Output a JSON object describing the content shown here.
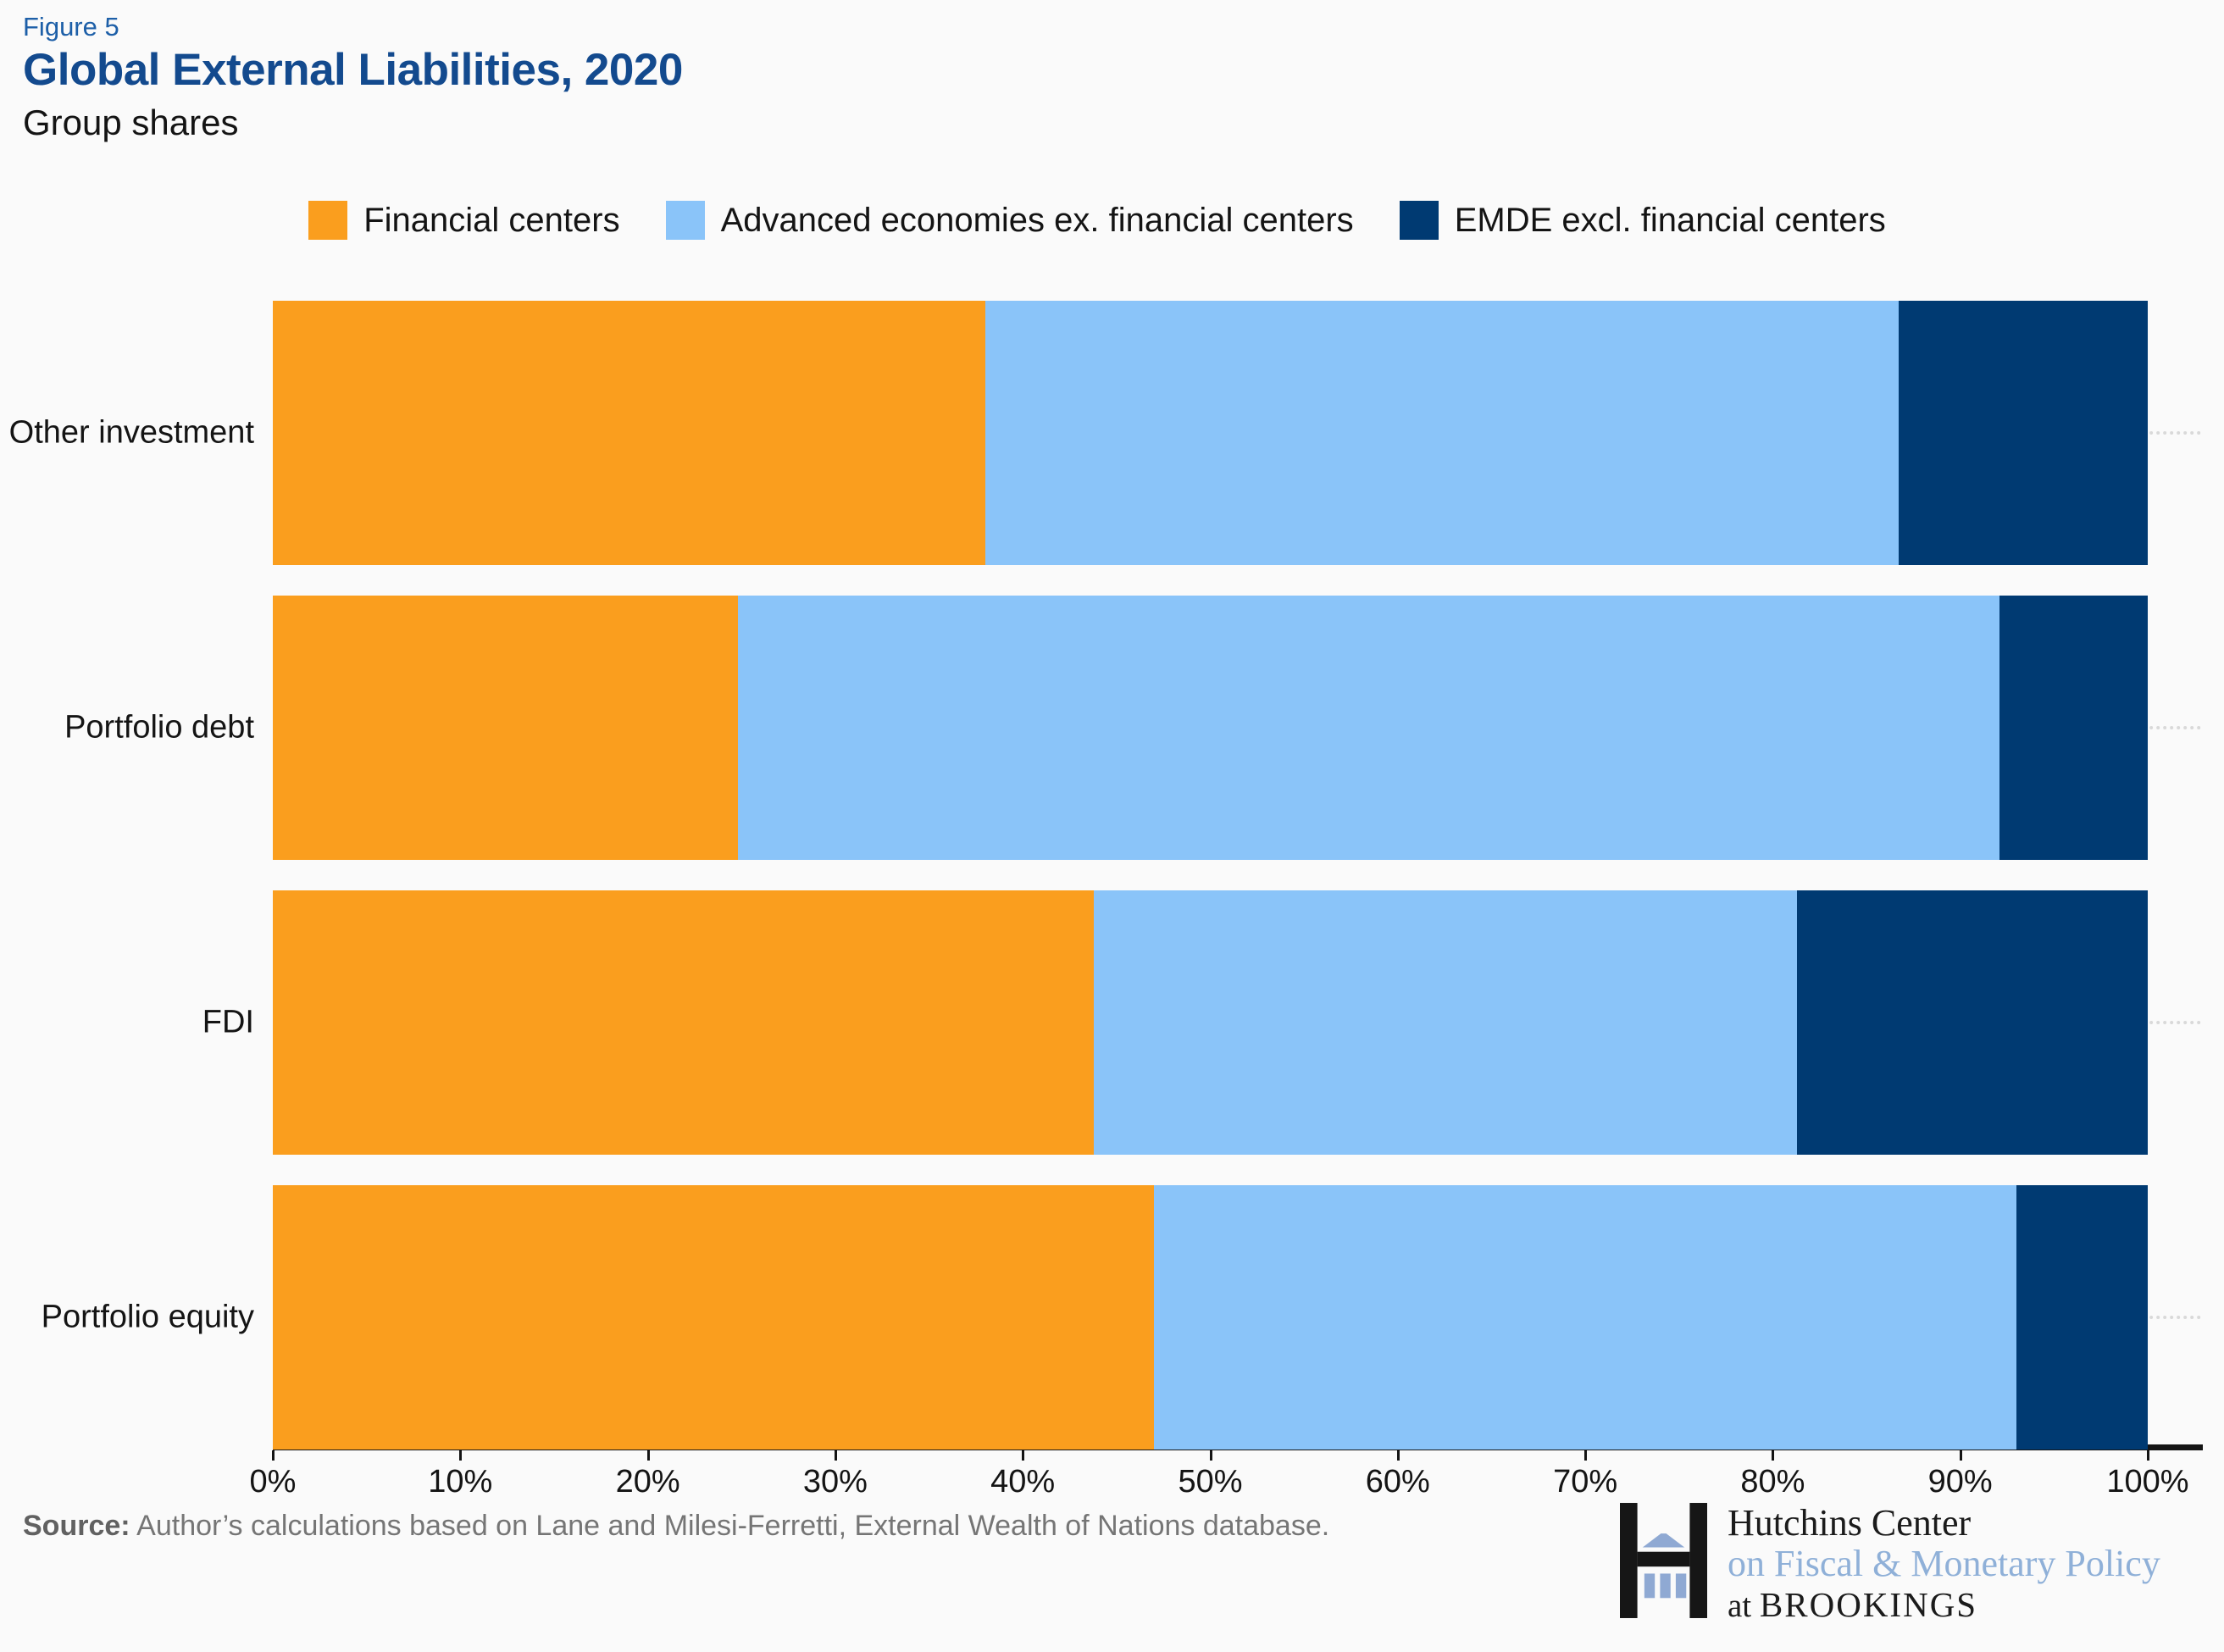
{
  "header": {
    "figure_label": "Figure 5",
    "title": "Global External Liabilities, 2020",
    "subtitle": "Group shares"
  },
  "colors": {
    "background": "#fafafa",
    "figure_label_blue": "#1d5fa8",
    "title_blue": "#134a8e",
    "axis_black": "#141414",
    "gridline_gray": "#d9d9d9",
    "source_gray": "#757575",
    "logo_blue": "#8fb0d8"
  },
  "chart_data": {
    "type": "bar",
    "orientation": "horizontal",
    "stacked": true,
    "title": "Global External Liabilities, 2020",
    "subtitle": "Group shares",
    "categories": [
      "Other investment",
      "Portfolio debt",
      "FDI",
      "Portfolio equity"
    ],
    "series": [
      {
        "name": "Financial centers",
        "color": "#fa9e1e",
        "values": [
          38.0,
          24.8,
          43.8,
          47.0
        ]
      },
      {
        "name": "Advanced economies ex. financial centers",
        "color": "#8ac4f9",
        "values": [
          48.7,
          67.3,
          37.5,
          46.0
        ]
      },
      {
        "name": "EMDE excl. financial centers",
        "color": "#003a72",
        "values": [
          13.3,
          7.9,
          18.7,
          7.0
        ]
      }
    ],
    "xlim": [
      0,
      100
    ],
    "x_ticks": [
      "0%",
      "10%",
      "20%",
      "30%",
      "40%",
      "50%",
      "60%",
      "70%",
      "80%",
      "90%",
      "100%"
    ],
    "legend_position": "top",
    "grid": "dotted horizontal row guides"
  },
  "footer": {
    "source_label": "Source:",
    "source_text": " Author’s calculations based on Lane and Milesi-Ferretti, External Wealth of Nations database."
  },
  "logo": {
    "line1": "Hutchins Center",
    "line2": "on Fiscal & Monetary Policy",
    "line3_prefix": "at ",
    "line3_name": "BROOKINGS"
  }
}
